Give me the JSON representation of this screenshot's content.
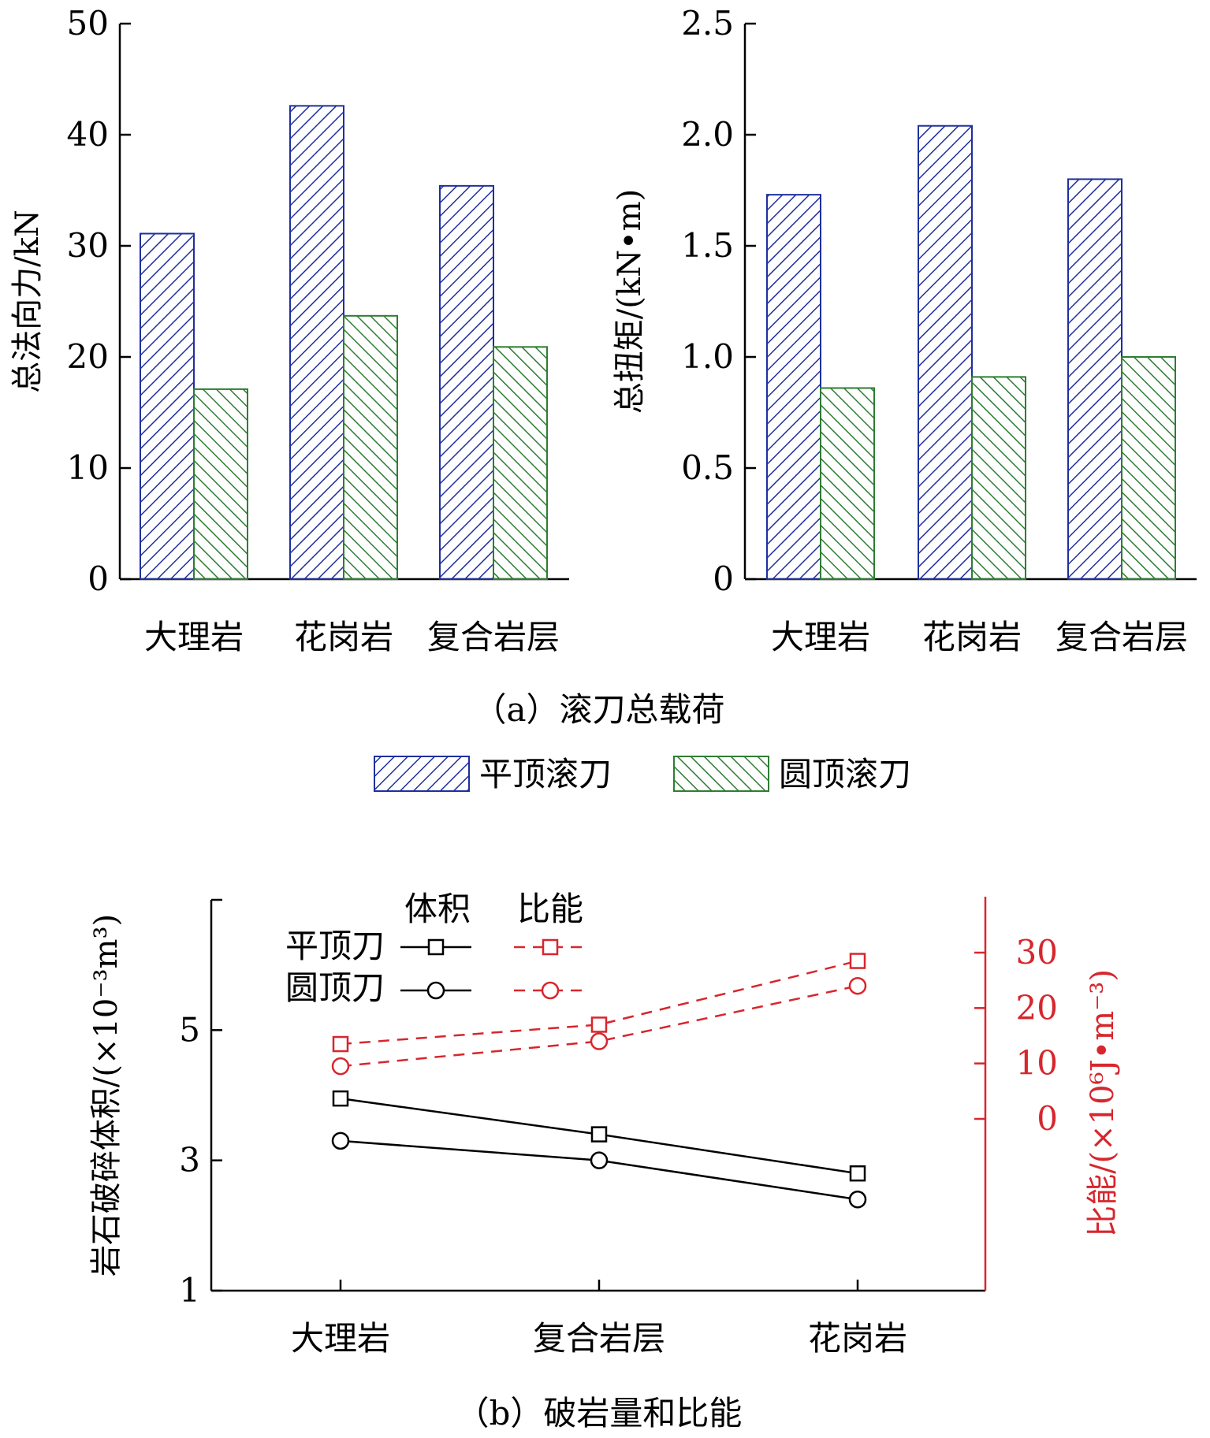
{
  "colors": {
    "flat": "#1f2f9e",
    "dome": "#2e7d32",
    "energy": "#d7262d",
    "axis": "#000000"
  },
  "legend_a": {
    "flat": "平顶滚刀",
    "dome": "圆顶滚刀"
  },
  "caption_a": "（a）滚刀总载荷",
  "caption_b": "（b）破岩量和比能",
  "chart_data": [
    {
      "id": "force",
      "type": "bar",
      "ylabel": "总法向力/kN",
      "ylim": [
        0,
        50
      ],
      "yticks": [
        0,
        10,
        20,
        30,
        40,
        50
      ],
      "ytick_labels": [
        "0",
        "10",
        "20",
        "30",
        "40",
        "50"
      ],
      "categories": [
        "大理岩",
        "花岗岩",
        "复合岩层"
      ],
      "series": [
        {
          "name": "平顶滚刀",
          "values": [
            31.1,
            42.6,
            35.4
          ]
        },
        {
          "name": "圆顶滚刀",
          "values": [
            17.1,
            23.7,
            20.9
          ]
        }
      ]
    },
    {
      "id": "torque",
      "type": "bar",
      "ylabel": "总扭矩/(kN•m)",
      "ylim": [
        0,
        2.5
      ],
      "yticks": [
        0,
        0.5,
        1.0,
        1.5,
        2.0,
        2.5
      ],
      "ytick_labels": [
        "0",
        "0.5",
        "1.0",
        "1.5",
        "2.0",
        "2.5"
      ],
      "categories": [
        "大理岩",
        "花岗岩",
        "复合岩层"
      ],
      "series": [
        {
          "name": "平顶滚刀",
          "values": [
            1.73,
            2.04,
            1.8
          ]
        },
        {
          "name": "圆顶滚刀",
          "values": [
            0.86,
            0.91,
            1.0
          ]
        }
      ]
    },
    {
      "id": "volume_energy",
      "type": "line",
      "ylabel": "岩石破碎体积/(×10⁻³m³)",
      "y2label": "比能/(×10⁶J•m⁻³)",
      "ylim": [
        1,
        7
      ],
      "yticks": [
        1,
        3,
        5
      ],
      "ytick_labels": [
        "1",
        "3",
        "5"
      ],
      "y2lim": [
        -30,
        40
      ],
      "y2ticks": [
        0,
        10,
        20,
        30
      ],
      "y2tick_labels": [
        "0",
        "10",
        "20",
        "30"
      ],
      "categories": [
        "大理岩",
        "复合岩层",
        "花岗岩"
      ],
      "legend_header": {
        "volume": "体积",
        "energy": "比能"
      },
      "legend_rows": [
        "平顶刀",
        "圆顶刀"
      ],
      "series": [
        {
          "name": "平顶刀 体积",
          "axis": "left",
          "marker": "square",
          "dashed": false,
          "values": [
            3.95,
            3.4,
            2.8
          ]
        },
        {
          "name": "圆顶刀 体积",
          "axis": "left",
          "marker": "circle",
          "dashed": false,
          "values": [
            3.3,
            3.0,
            2.4
          ]
        },
        {
          "name": "平顶刀 比能",
          "axis": "right",
          "marker": "square",
          "dashed": true,
          "values": [
            13.5,
            17,
            28.5
          ]
        },
        {
          "name": "圆顶刀 比能",
          "axis": "right",
          "marker": "circle",
          "dashed": true,
          "values": [
            9.5,
            14,
            24
          ]
        }
      ]
    }
  ]
}
